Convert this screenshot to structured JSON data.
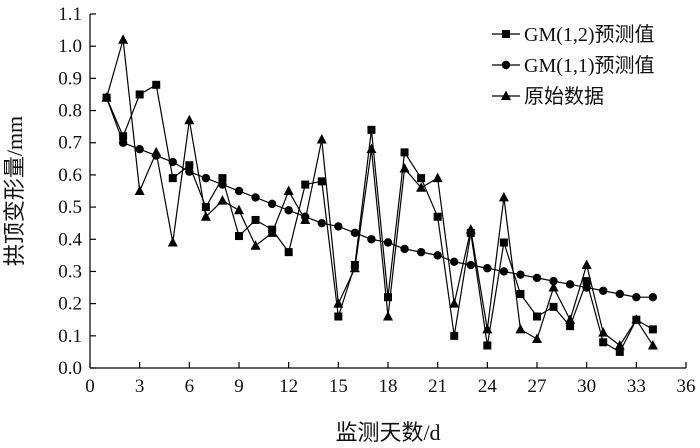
{
  "chart_data": {
    "type": "line",
    "title": "",
    "xlabel": "监测天数/d",
    "ylabel": "拱顶变形量/mm",
    "xlim": [
      0,
      36
    ],
    "ylim": [
      0.0,
      1.1
    ],
    "xticks": [
      0,
      3,
      6,
      9,
      12,
      15,
      18,
      21,
      24,
      27,
      30,
      33,
      36
    ],
    "yticks": [
      "0.0",
      "0.1",
      "0.2",
      "0.3",
      "0.4",
      "0.5",
      "0.6",
      "0.7",
      "0.8",
      "0.9",
      "1.0",
      "1.1"
    ],
    "grid": false,
    "legend_position": "top-right",
    "x": [
      1,
      2,
      3,
      4,
      5,
      6,
      7,
      8,
      9,
      10,
      11,
      12,
      13,
      14,
      15,
      16,
      17,
      18,
      19,
      20,
      21,
      22,
      23,
      24,
      25,
      26,
      27,
      28,
      29,
      30,
      31,
      32,
      33,
      34
    ],
    "series": [
      {
        "name": "GM(1,2)预测值",
        "marker": "square",
        "values": [
          0.84,
          0.72,
          0.85,
          0.88,
          0.59,
          0.63,
          0.5,
          0.59,
          0.41,
          0.46,
          0.43,
          0.36,
          0.57,
          0.58,
          0.16,
          0.32,
          0.74,
          0.22,
          0.67,
          0.59,
          0.47,
          0.1,
          0.42,
          0.07,
          0.39,
          0.23,
          0.16,
          0.19,
          0.13,
          0.27,
          0.08,
          0.05,
          0.15,
          0.12
        ]
      },
      {
        "name": "GM(1,1)预测值",
        "marker": "circle",
        "values": [
          0.84,
          0.7,
          0.68,
          0.66,
          0.64,
          0.61,
          0.59,
          0.57,
          0.55,
          0.53,
          0.51,
          0.49,
          0.47,
          0.45,
          0.44,
          0.42,
          0.4,
          0.39,
          0.37,
          0.36,
          0.35,
          0.33,
          0.32,
          0.31,
          0.3,
          0.29,
          0.28,
          0.27,
          0.26,
          0.25,
          0.24,
          0.23,
          0.22,
          0.22
        ]
      },
      {
        "name": "原始数据",
        "marker": "triangle",
        "values": [
          0.84,
          1.02,
          0.55,
          0.67,
          0.39,
          0.77,
          0.47,
          0.52,
          0.49,
          0.38,
          0.42,
          0.55,
          0.46,
          0.71,
          0.2,
          0.31,
          0.68,
          0.16,
          0.62,
          0.56,
          0.59,
          0.2,
          0.43,
          0.12,
          0.53,
          0.12,
          0.09,
          0.25,
          0.15,
          0.32,
          0.11,
          0.07,
          0.15,
          0.07
        ]
      }
    ]
  }
}
